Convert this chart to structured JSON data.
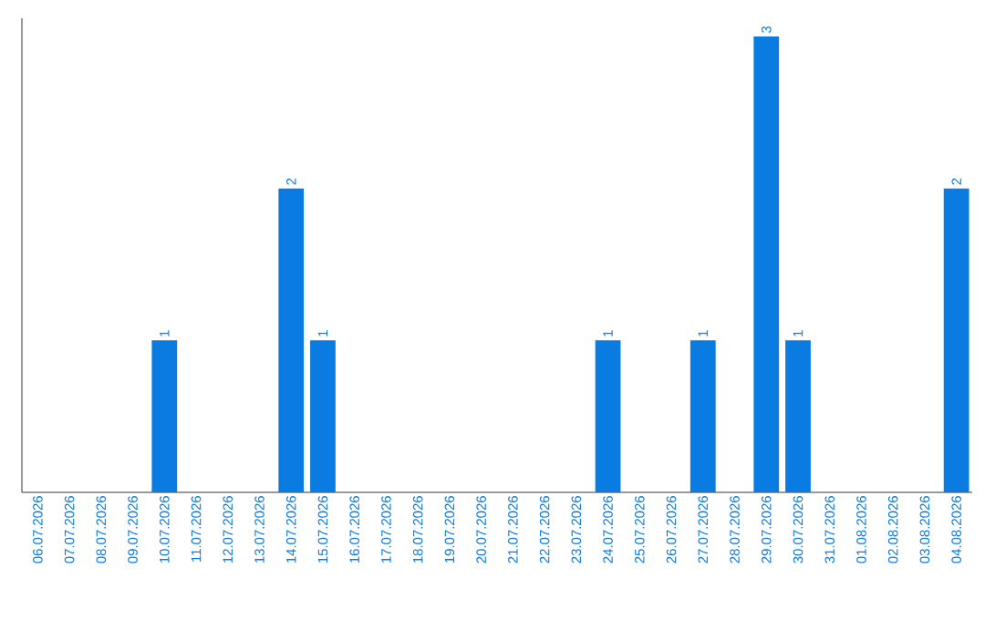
{
  "chart_data": {
    "type": "bar",
    "categories": [
      "06.07.2026",
      "07.07.2026",
      "08.07.2026",
      "09.07.2026",
      "10.07.2026",
      "11.07.2026",
      "12.07.2026",
      "13.07.2026",
      "14.07.2026",
      "15.07.2026",
      "16.07.2026",
      "17.07.2026",
      "18.07.2026",
      "19.07.2026",
      "20.07.2026",
      "21.07.2026",
      "22.07.2026",
      "23.07.2026",
      "24.07.2026",
      "25.07.2026",
      "26.07.2026",
      "27.07.2026",
      "28.07.2026",
      "29.07.2026",
      "30.07.2026",
      "31.07.2026",
      "01.08.2026",
      "02.08.2026",
      "03.08.2026",
      "04.08.2026"
    ],
    "values": [
      null,
      null,
      null,
      null,
      1,
      null,
      null,
      null,
      2,
      1,
      null,
      null,
      null,
      null,
      null,
      null,
      null,
      null,
      1,
      null,
      null,
      1,
      null,
      3,
      1,
      null,
      null,
      null,
      null,
      2
    ],
    "color": "#0a7be0",
    "data_labels": true
  }
}
